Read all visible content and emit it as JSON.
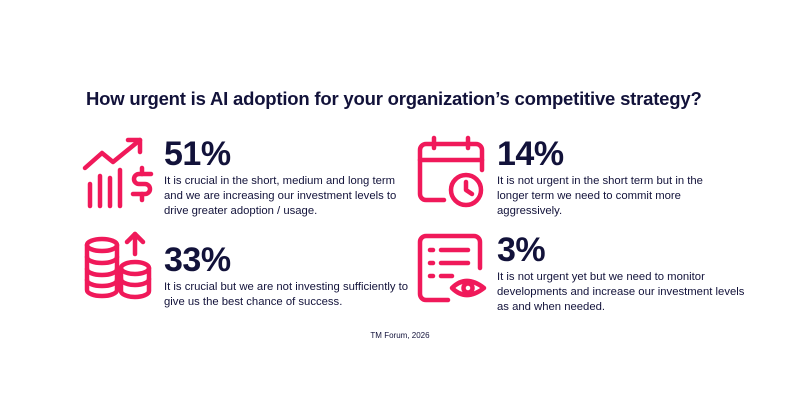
{
  "title": "How urgent is AI adoption for your organization’s competitive strategy?",
  "source": "TM Forum, 2026",
  "colors": {
    "accent": "#f0195a",
    "text": "#12123a",
    "background": "#ffffff"
  },
  "chart_data": {
    "type": "table",
    "title": "How urgent is AI adoption for your organization’s competitive strategy?",
    "items": [
      {
        "value": 51,
        "label": "51%",
        "icon": "growth-chart-dollar-icon",
        "text": "It is crucial in the short, medium and long term and we are increasing our investment levels to drive greater adoption / usage."
      },
      {
        "value": 14,
        "label": "14%",
        "icon": "calendar-clock-icon",
        "text": "It is not urgent in the short term but in the longer term we need to commit more aggressively."
      },
      {
        "value": 33,
        "label": "33%",
        "icon": "coin-stacks-arrow-icon",
        "text": "It is crucial but we are not investing sufficiently to give us the best chance of success."
      },
      {
        "value": 3,
        "label": "3%",
        "icon": "checklist-eye-icon",
        "text": "It is not urgent yet but we need to monitor developments and increase our investment levels as and when needed."
      }
    ]
  }
}
